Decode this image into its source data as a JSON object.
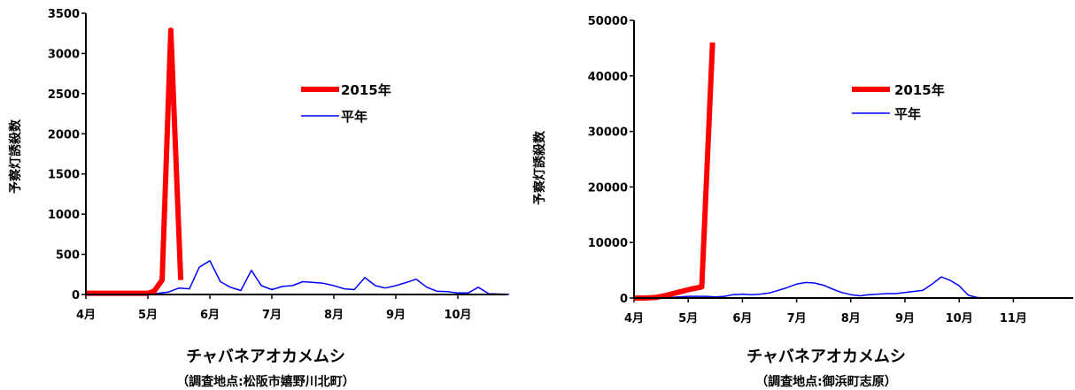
{
  "chart_data": [
    {
      "type": "line",
      "title": "チャバネアオカメムシ",
      "subtitle": "（調査地点:松阪市嬉野川北町）",
      "ylabel": "予察灯誘殺数",
      "xlabel": "",
      "ylim": [
        0,
        3500
      ],
      "yticks": [
        0,
        500,
        1000,
        1500,
        2000,
        2500,
        3000,
        3500
      ],
      "xlim": [
        0,
        6.9
      ],
      "xtick_positions": [
        0,
        1,
        2,
        3,
        4,
        5,
        6
      ],
      "xtick_labels": [
        "4月",
        "5月",
        "6月",
        "7月",
        "8月",
        "9月",
        "10月"
      ],
      "legend_position": "upper-right",
      "series": [
        {
          "name": "2015年",
          "color": "#ff0000",
          "x": [
            0,
            0.17,
            0.33,
            0.5,
            0.67,
            0.83,
            1.0,
            1.1,
            1.23,
            1.37,
            1.53
          ],
          "y": [
            15,
            15,
            15,
            15,
            15,
            15,
            15,
            40,
            180,
            3290,
            180
          ]
        },
        {
          "name": "平年",
          "color": "#0000ff",
          "x": [
            0,
            0.17,
            0.33,
            0.5,
            0.67,
            0.83,
            1.0,
            1.17,
            1.33,
            1.5,
            1.67,
            1.83,
            2.0,
            2.17,
            2.33,
            2.5,
            2.67,
            2.83,
            3.0,
            3.17,
            3.33,
            3.5,
            3.67,
            3.83,
            4.0,
            4.17,
            4.33,
            4.5,
            4.67,
            4.83,
            5.0,
            5.17,
            5.33,
            5.5,
            5.67,
            5.83,
            6.0,
            6.17,
            6.33,
            6.5,
            6.67,
            6.83
          ],
          "y": [
            3,
            3,
            3,
            3,
            3,
            3,
            3,
            15,
            30,
            80,
            70,
            340,
            420,
            160,
            90,
            50,
            300,
            110,
            60,
            100,
            110,
            160,
            150,
            140,
            110,
            70,
            60,
            210,
            110,
            80,
            110,
            150,
            190,
            90,
            40,
            35,
            20,
            20,
            90,
            10,
            5,
            3
          ]
        }
      ]
    },
    {
      "type": "line",
      "title": "チャバネアオカメムシ",
      "subtitle": "（調査地点:御浜町志原）",
      "ylabel": "予察灯誘殺数",
      "xlabel": "",
      "ylim": [
        0,
        50000
      ],
      "yticks": [
        0,
        10000,
        20000,
        30000,
        40000,
        50000
      ],
      "xlim": [
        0,
        7.6
      ],
      "xtick_positions": [
        0,
        1,
        2,
        3,
        4,
        5,
        6,
        7
      ],
      "xtick_labels": [
        "4月",
        "5月",
        "6月",
        "7月",
        "8月",
        "9月",
        "10月",
        "11月"
      ],
      "legend_position": "upper-right",
      "series": [
        {
          "name": "2015年",
          "color": "#ff0000",
          "x": [
            0,
            0.2,
            0.4,
            0.6,
            0.8,
            1.0,
            1.25,
            1.45
          ],
          "y": [
            0,
            0,
            100,
            500,
            1000,
            1500,
            2000,
            46000
          ]
        },
        {
          "name": "平年",
          "color": "#0000ff",
          "x": [
            0,
            0.17,
            0.33,
            0.5,
            0.67,
            0.83,
            1.0,
            1.17,
            1.33,
            1.5,
            1.67,
            1.83,
            2.0,
            2.17,
            2.33,
            2.5,
            2.67,
            2.83,
            3.0,
            3.17,
            3.33,
            3.5,
            3.67,
            3.83,
            4.0,
            4.17,
            4.33,
            4.5,
            4.67,
            4.83,
            5.0,
            5.17,
            5.33,
            5.5,
            5.67,
            5.83,
            6.0,
            6.17,
            6.33,
            6.5,
            6.67,
            6.83,
            7.0,
            7.17,
            7.33,
            7.5
          ],
          "y": [
            0,
            0,
            0,
            50,
            100,
            200,
            300,
            300,
            300,
            200,
            300,
            600,
            700,
            600,
            700,
            900,
            1400,
            1900,
            2500,
            2800,
            2700,
            2300,
            1600,
            1000,
            600,
            400,
            600,
            700,
            800,
            800,
            1000,
            1200,
            1400,
            2500,
            3800,
            3200,
            2200,
            500,
            100,
            0,
            0,
            0,
            0,
            0,
            0,
            0
          ]
        }
      ]
    }
  ]
}
